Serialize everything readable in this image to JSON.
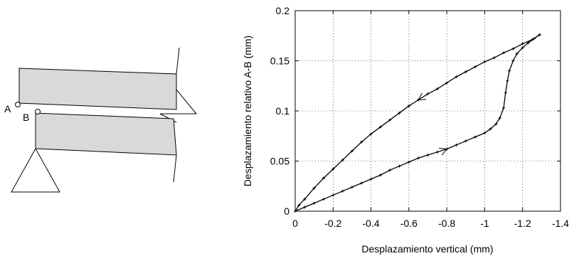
{
  "diagram": {
    "point_a_label": "A",
    "point_b_label": "B"
  },
  "chart_data": {
    "type": "line",
    "title": "",
    "xlabel": "Desplazamiento vertical (mm)",
    "ylabel": "Desplazamiento relativo A-B (mm)",
    "xlim": [
      0,
      -1.4
    ],
    "ylim": [
      0,
      0.2
    ],
    "x_ticks": [
      0,
      -0.2,
      -0.4,
      -0.6,
      -0.8,
      -1,
      -1.2,
      -1.4
    ],
    "x_tick_labels": [
      "0",
      "-0.2",
      "-0.4",
      "-0.6",
      "-0.8",
      "-1",
      "-1.2",
      "-1.4"
    ],
    "y_ticks": [
      0,
      0.05,
      0.1,
      0.15,
      0.2
    ],
    "y_tick_labels": [
      "0",
      "0.05",
      "0.1",
      "0.15",
      "0.2"
    ],
    "grid": true,
    "grid_style": "dotted",
    "series": [
      {
        "role": "loading",
        "direction_arrow_at_x": -0.8,
        "points": [
          [
            0,
            0
          ],
          [
            -0.05,
            0.004
          ],
          [
            -0.1,
            0.008
          ],
          [
            -0.15,
            0.012
          ],
          [
            -0.2,
            0.016
          ],
          [
            -0.25,
            0.02
          ],
          [
            -0.3,
            0.024
          ],
          [
            -0.35,
            0.028
          ],
          [
            -0.4,
            0.032
          ],
          [
            -0.45,
            0.036
          ],
          [
            -0.5,
            0.041
          ],
          [
            -0.55,
            0.045
          ],
          [
            -0.6,
            0.049
          ],
          [
            -0.65,
            0.053
          ],
          [
            -0.7,
            0.056
          ],
          [
            -0.75,
            0.059
          ],
          [
            -0.8,
            0.062
          ],
          [
            -0.85,
            0.066
          ],
          [
            -0.9,
            0.07
          ],
          [
            -0.95,
            0.074
          ],
          [
            -1.0,
            0.078
          ],
          [
            -1.03,
            0.082
          ],
          [
            -1.06,
            0.087
          ],
          [
            -1.08,
            0.093
          ],
          [
            -1.1,
            0.103
          ],
          [
            -1.11,
            0.118
          ],
          [
            -1.12,
            0.13
          ],
          [
            -1.13,
            0.14
          ],
          [
            -1.15,
            0.15
          ],
          [
            -1.17,
            0.157
          ],
          [
            -1.2,
            0.163
          ],
          [
            -1.23,
            0.168
          ],
          [
            -1.26,
            0.172
          ],
          [
            -1.29,
            0.176
          ]
        ]
      },
      {
        "role": "unloading",
        "direction_arrow_at_x": -0.66,
        "points": [
          [
            -1.29,
            0.176
          ],
          [
            -1.25,
            0.171
          ],
          [
            -1.2,
            0.167
          ],
          [
            -1.15,
            0.162
          ],
          [
            -1.1,
            0.158
          ],
          [
            -1.05,
            0.153
          ],
          [
            -1.0,
            0.149
          ],
          [
            -0.95,
            0.144
          ],
          [
            -0.9,
            0.139
          ],
          [
            -0.85,
            0.134
          ],
          [
            -0.8,
            0.128
          ],
          [
            -0.75,
            0.122
          ],
          [
            -0.7,
            0.117
          ],
          [
            -0.65,
            0.111
          ],
          [
            -0.6,
            0.105
          ],
          [
            -0.55,
            0.098
          ],
          [
            -0.5,
            0.091
          ],
          [
            -0.45,
            0.084
          ],
          [
            -0.4,
            0.077
          ],
          [
            -0.35,
            0.069
          ],
          [
            -0.3,
            0.06
          ],
          [
            -0.25,
            0.051
          ],
          [
            -0.2,
            0.042
          ],
          [
            -0.15,
            0.033
          ],
          [
            -0.1,
            0.023
          ],
          [
            -0.05,
            0.012
          ],
          [
            -0.02,
            0.006
          ],
          [
            0,
            0
          ]
        ]
      }
    ]
  }
}
